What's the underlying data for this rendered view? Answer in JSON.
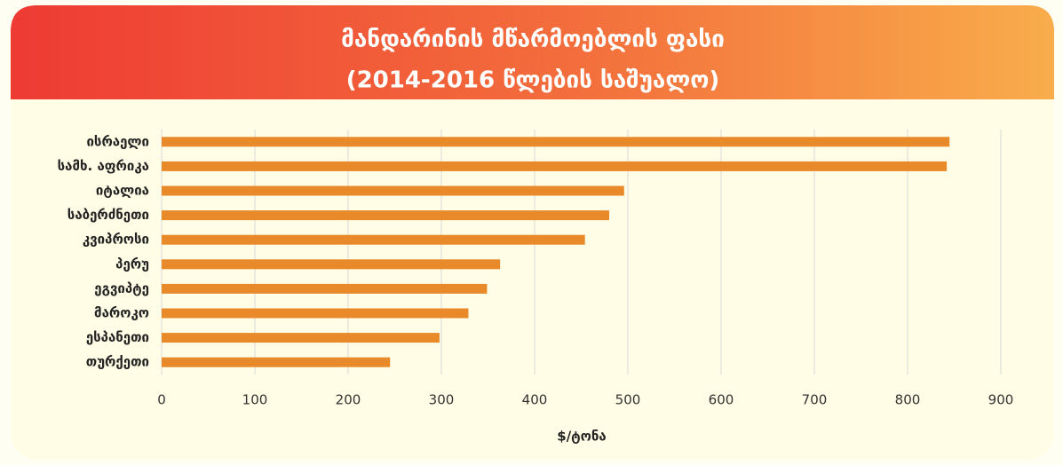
{
  "chart_data": {
    "type": "barh",
    "title": "მანდარინის მწარმოებლის ფასი",
    "subtitle": "(2014-2016 წლების საშუალო)",
    "xlabel": "$/ტონა",
    "categories": [
      "ისრაელი",
      "სამხ. აფრიკა",
      "იტალია",
      "საბერძნეთი",
      "კვიპროსი",
      "პერუ",
      "ეგვიპტე",
      "მაროკო",
      "ესპანეთი",
      "თურქეთი"
    ],
    "values": [
      845,
      842,
      496,
      480,
      454,
      363,
      349,
      329,
      298,
      245
    ],
    "color": "#e8892a",
    "xlim": [
      0,
      900
    ],
    "xticks": [
      0,
      100,
      200,
      300,
      400,
      500,
      600,
      700,
      800,
      900
    ],
    "grid": true
  }
}
